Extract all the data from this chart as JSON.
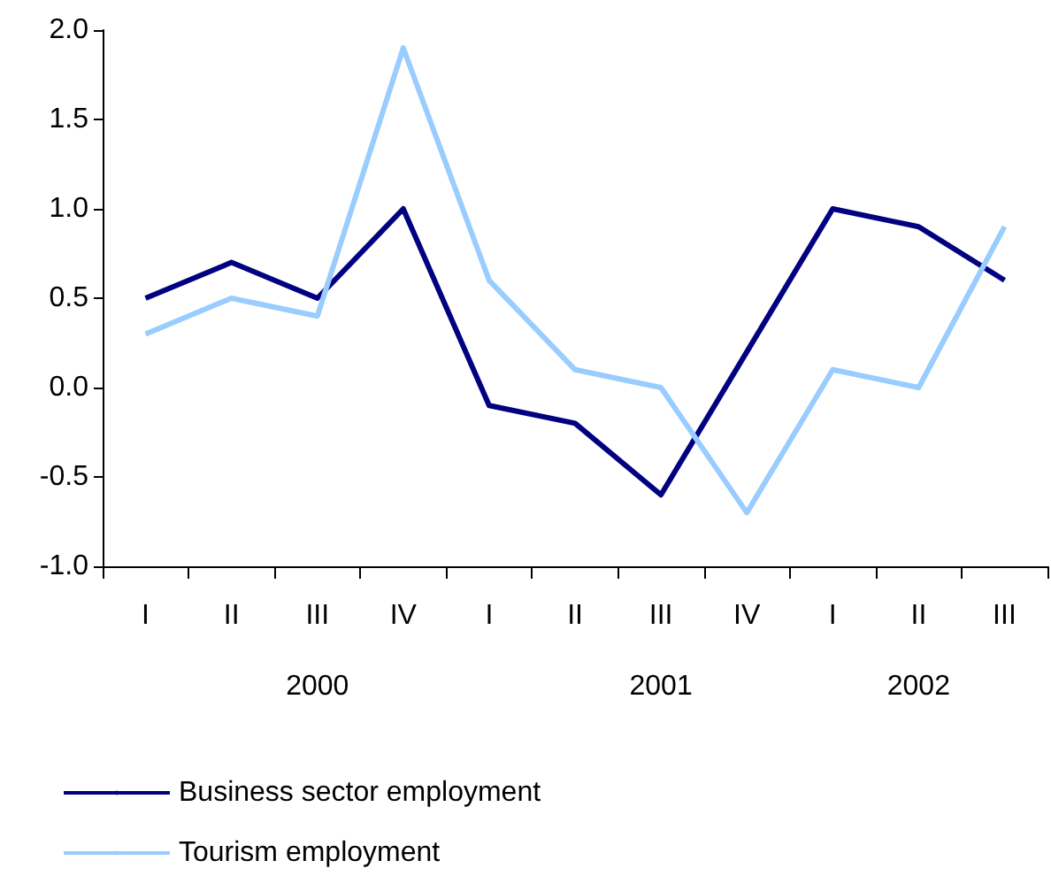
{
  "chart_data": {
    "type": "line",
    "categories": [
      "I",
      "II",
      "III",
      "IV",
      "I",
      "II",
      "III",
      "IV",
      "I",
      "II",
      "III"
    ],
    "series": [
      {
        "name": "Business sector employment",
        "color": "#000080",
        "values": [
          0.5,
          0.7,
          0.5,
          1.0,
          -0.1,
          -0.2,
          -0.6,
          0.2,
          1.0,
          0.9,
          0.6
        ]
      },
      {
        "name": "Tourism employment",
        "color": "#99ccff",
        "values": [
          0.3,
          0.5,
          0.4,
          1.9,
          0.6,
          0.1,
          0.0,
          -0.7,
          0.1,
          0.0,
          0.9
        ]
      }
    ],
    "ylim": [
      -1,
      2
    ],
    "yticks": [
      {
        "value": -1,
        "label": "-1.0"
      },
      -0.5,
      {
        "value": 0,
        "label": "0.0"
      },
      0.5,
      {
        "value": 1,
        "label": "1.0"
      },
      1.5,
      {
        "value": 2,
        "label": "2.0"
      }
    ],
    "annotations": [
      "2000",
      "2001",
      "2002"
    ],
    "grid": false,
    "legend": "bottom",
    "marker": "none",
    "line_style": "solid"
  }
}
